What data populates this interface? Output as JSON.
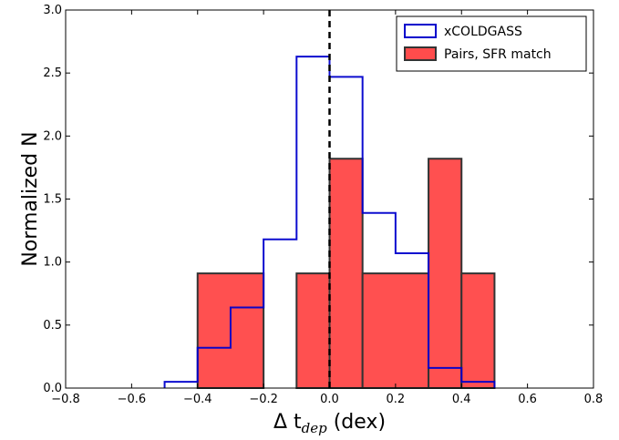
{
  "chart_data": {
    "type": "bar",
    "xlabel": "Δ t_dep (dex)",
    "xlabel_parts": {
      "main": "Δ  t",
      "sub": "dep",
      "unit": " (dex)"
    },
    "ylabel": "Normalized N",
    "xlim": [
      -0.8,
      0.8
    ],
    "ylim": [
      0.0,
      3.0
    ],
    "xticks": [
      -0.8,
      -0.6,
      -0.4,
      -0.2,
      0.0,
      0.2,
      0.4,
      0.6,
      0.8
    ],
    "xtick_labels": [
      "−0.8",
      "−0.6",
      "−0.4",
      "−0.2",
      "0.0",
      "0.2",
      "0.4",
      "0.6",
      "0.8"
    ],
    "yticks": [
      0.0,
      0.5,
      1.0,
      1.5,
      2.0,
      2.5,
      3.0
    ],
    "ytick_labels": [
      "0.0",
      "0.5",
      "1.0",
      "1.5",
      "2.0",
      "2.5",
      "3.0"
    ],
    "reference_line": {
      "x": 0.0,
      "style": "dashed",
      "color": "#000000"
    },
    "legend_position": "top-right",
    "series": [
      {
        "name": "xCOLDGASS",
        "histtype": "step",
        "color": "#0000cc",
        "bins": [
          [
            -0.5,
            -0.4,
            0.05
          ],
          [
            -0.4,
            -0.3,
            0.32
          ],
          [
            -0.3,
            -0.2,
            0.64
          ],
          [
            -0.2,
            -0.1,
            1.18
          ],
          [
            -0.1,
            0.0,
            2.63
          ],
          [
            0.0,
            0.1,
            2.47
          ],
          [
            0.1,
            0.2,
            1.39
          ],
          [
            0.2,
            0.3,
            1.07
          ],
          [
            0.3,
            0.4,
            0.16
          ],
          [
            0.4,
            0.5,
            0.05
          ]
        ]
      },
      {
        "name": "Pairs, SFR match",
        "histtype": "filled",
        "color": "#ff4c4c",
        "bins": [
          [
            -0.4,
            -0.2,
            0.91
          ],
          [
            -0.1,
            0.0,
            0.91
          ],
          [
            0.0,
            0.1,
            1.82
          ],
          [
            0.1,
            0.3,
            0.91
          ],
          [
            0.3,
            0.4,
            1.82
          ],
          [
            0.4,
            0.5,
            0.91
          ]
        ]
      }
    ]
  }
}
